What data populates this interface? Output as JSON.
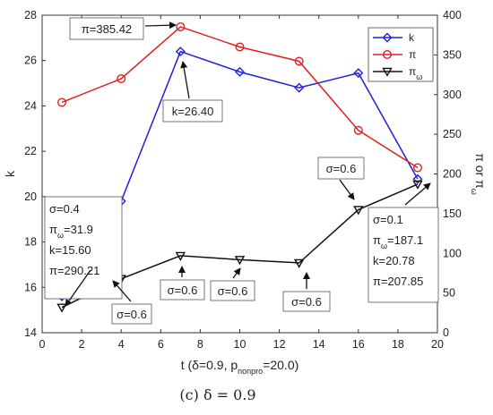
{
  "chart_data": {
    "type": "line",
    "x": [
      1,
      4,
      7,
      10,
      13,
      16,
      19
    ],
    "xlabel": {
      "main": "t (",
      "delta": "δ",
      "mid": "=0.9, p",
      "sub": "nonpro",
      "end": "=20.0)"
    },
    "ylabel_left": "k",
    "ylabel_right": "π or π",
    "ylabel_right_sub": "ω",
    "xlim": [
      0,
      20
    ],
    "xticks": [
      0,
      2,
      4,
      6,
      8,
      10,
      12,
      14,
      16,
      18,
      20
    ],
    "ylim_left": [
      14,
      28
    ],
    "yticks_left": [
      14,
      16,
      18,
      20,
      22,
      24,
      26,
      28
    ],
    "ylim_right": [
      0,
      400
    ],
    "yticks_right": [
      0,
      50,
      100,
      150,
      200,
      250,
      300,
      350,
      400
    ],
    "legend_position": "top-right",
    "series": [
      {
        "name": "k",
        "axis": "left",
        "color": "#1f1fe0",
        "marker": "diamond",
        "values": [
          15.6,
          19.8,
          26.4,
          25.5,
          24.8,
          25.45,
          20.78
        ]
      },
      {
        "name": "π",
        "axis": "right",
        "color": "#e02020",
        "marker": "circle",
        "values": [
          290.21,
          320.0,
          385.42,
          360.0,
          342.0,
          255.0,
          207.85
        ]
      },
      {
        "name": "π",
        "sub": "ω",
        "axis": "right",
        "color": "#111111",
        "marker": "triangle-down",
        "values": [
          31.9,
          68.0,
          97.0,
          92.0,
          88.0,
          155.0,
          187.1
        ]
      }
    ],
    "annotations": [
      {
        "id": "pi-max",
        "lines": [
          "π=385.42"
        ],
        "x": 7,
        "y": 385.42,
        "axis": "right"
      },
      {
        "id": "k-max",
        "lines": [
          "k=26.40"
        ],
        "x": 7,
        "y": 26.4,
        "axis": "left"
      },
      {
        "id": "t1",
        "lines": [
          "σ=0.4",
          "π|ω|=31.9",
          "k=15.60",
          "π=290.21"
        ],
        "x": 1,
        "y": 31.9,
        "axis": "right"
      },
      {
        "id": "t4",
        "lines": [
          "σ=0.6"
        ],
        "x": 4,
        "y": 68.0,
        "axis": "right"
      },
      {
        "id": "t7",
        "lines": [
          "σ=0.6"
        ],
        "x": 7,
        "y": 97.0,
        "axis": "right"
      },
      {
        "id": "t10",
        "lines": [
          "σ=0.6"
        ],
        "x": 10,
        "y": 92.0,
        "axis": "right"
      },
      {
        "id": "t13",
        "lines": [
          "σ=0.6"
        ],
        "x": 13,
        "y": 88.0,
        "axis": "right"
      },
      {
        "id": "t16",
        "lines": [
          "σ=0.6"
        ],
        "x": 16,
        "y": 155.0,
        "axis": "right"
      },
      {
        "id": "t19",
        "lines": [
          "σ=0.1",
          "π|ω|=187.1",
          "k=20.78",
          "π=207.85"
        ],
        "x": 19,
        "y": 187.1,
        "axis": "right"
      }
    ],
    "caption": "(c) δ = 0.9"
  }
}
